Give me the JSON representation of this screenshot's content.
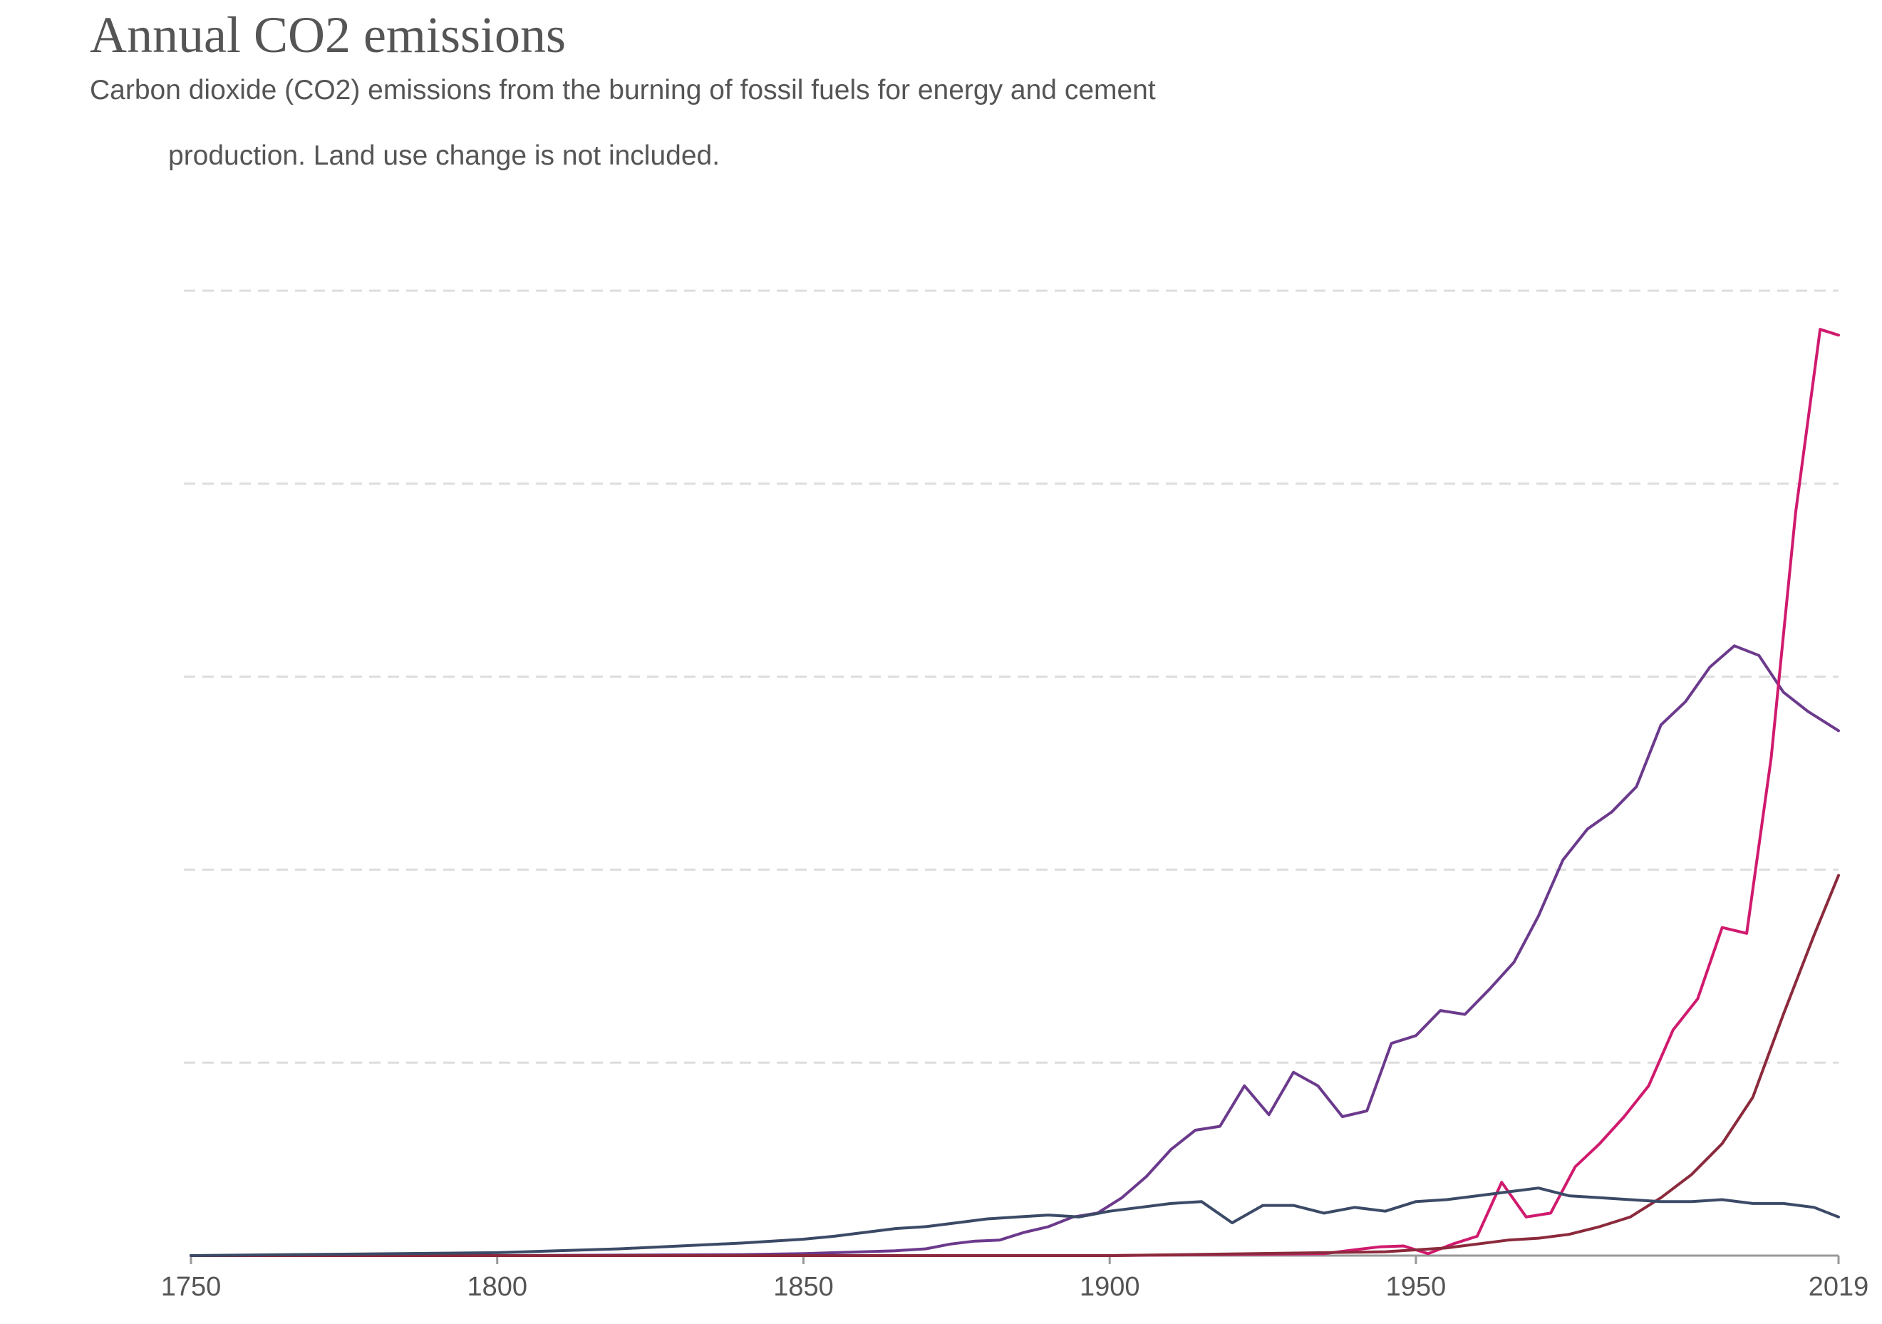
{
  "header": {
    "title": "Annual CO2 emissions",
    "subtitle_line1": "Carbon dioxide (CO2) emissions from the burning of fossil fuels for energy and cement",
    "subtitle_line2": "production. Land use change is not included."
  },
  "chart_data": {
    "type": "line",
    "title": "Annual CO2 emissions",
    "subtitle": "Carbon dioxide (CO2) emissions from the burning of fossil fuels for energy and cement production. Land use change is not included.",
    "xlabel": "",
    "ylabel": "",
    "xlim": [
      1750,
      2019
    ],
    "ylim": [
      0,
      5
    ],
    "y_tick_labels_shown": false,
    "x_ticks": [
      1750,
      1800,
      1850,
      1900,
      1950,
      2019
    ],
    "x_tick_labels": [
      "1750",
      "1800",
      "1850",
      "1900",
      "1950",
      "2019"
    ],
    "grid": "horizontal dashed",
    "legend": "none",
    "series": [
      {
        "color": "#6b3a8c",
        "x": [
          1750,
          1800,
          1840,
          1850,
          1860,
          1865,
          1870,
          1874,
          1878,
          1882,
          1886,
          1890,
          1894,
          1898,
          1902,
          1906,
          1910,
          1914,
          1918,
          1922,
          1926,
          1930,
          1934,
          1938,
          1942,
          1946,
          1950,
          1954,
          1958,
          1962,
          1966,
          1970,
          1974,
          1978,
          1982,
          1986,
          1990,
          1994,
          1998,
          2002,
          2006,
          2010,
          2014,
          2019
        ],
        "y": [
          0,
          0,
          0.005,
          0.01,
          0.02,
          0.025,
          0.035,
          0.06,
          0.075,
          0.08,
          0.12,
          0.15,
          0.2,
          0.22,
          0.3,
          0.41,
          0.55,
          0.65,
          0.67,
          0.88,
          0.73,
          0.95,
          0.88,
          0.72,
          0.75,
          1.1,
          1.14,
          1.27,
          1.25,
          1.38,
          1.52,
          1.76,
          2.05,
          2.21,
          2.3,
          2.43,
          2.75,
          2.87,
          3.05,
          3.16,
          3.11,
          2.92,
          2.82,
          2.72
        ]
      },
      {
        "color": "#d01a6e",
        "x": [
          1750,
          1900,
          1935,
          1940,
          1944,
          1948,
          1952,
          1956,
          1960,
          1964,
          1968,
          1972,
          1976,
          1980,
          1984,
          1988,
          1992,
          1996,
          2000,
          2004,
          2008,
          2012,
          2016,
          2019
        ],
        "y": [
          0,
          0,
          0.01,
          0.03,
          0.045,
          0.05,
          0.01,
          0.06,
          0.1,
          0.38,
          0.2,
          0.22,
          0.46,
          0.58,
          0.72,
          0.88,
          1.17,
          1.33,
          1.7,
          1.67,
          2.58,
          3.85,
          4.8,
          4.77
        ]
      },
      {
        "color": "#8b2a3c",
        "x": [
          1750,
          1900,
          1935,
          1945,
          1955,
          1960,
          1965,
          1970,
          1975,
          1980,
          1985,
          1990,
          1995,
          2000,
          2005,
          2010,
          2015,
          2019
        ],
        "y": [
          0,
          0,
          0.015,
          0.02,
          0.04,
          0.06,
          0.08,
          0.09,
          0.11,
          0.15,
          0.2,
          0.3,
          0.42,
          0.58,
          0.82,
          1.25,
          1.66,
          1.97
        ]
      },
      {
        "color": "#3b4a66",
        "x": [
          1750,
          1800,
          1820,
          1840,
          1850,
          1855,
          1860,
          1865,
          1870,
          1875,
          1880,
          1885,
          1890,
          1895,
          1900,
          1905,
          1910,
          1915,
          1920,
          1925,
          1930,
          1935,
          1940,
          1945,
          1950,
          1955,
          1960,
          1965,
          1970,
          1975,
          1980,
          1985,
          1990,
          1995,
          2000,
          2005,
          2010,
          2015,
          2019
        ],
        "y": [
          0,
          0.015,
          0.035,
          0.065,
          0.085,
          0.1,
          0.12,
          0.14,
          0.15,
          0.17,
          0.19,
          0.2,
          0.21,
          0.2,
          0.23,
          0.25,
          0.27,
          0.28,
          0.17,
          0.26,
          0.26,
          0.22,
          0.25,
          0.23,
          0.28,
          0.29,
          0.31,
          0.33,
          0.35,
          0.31,
          0.3,
          0.29,
          0.28,
          0.28,
          0.29,
          0.27,
          0.27,
          0.25,
          0.2
        ]
      }
    ]
  }
}
